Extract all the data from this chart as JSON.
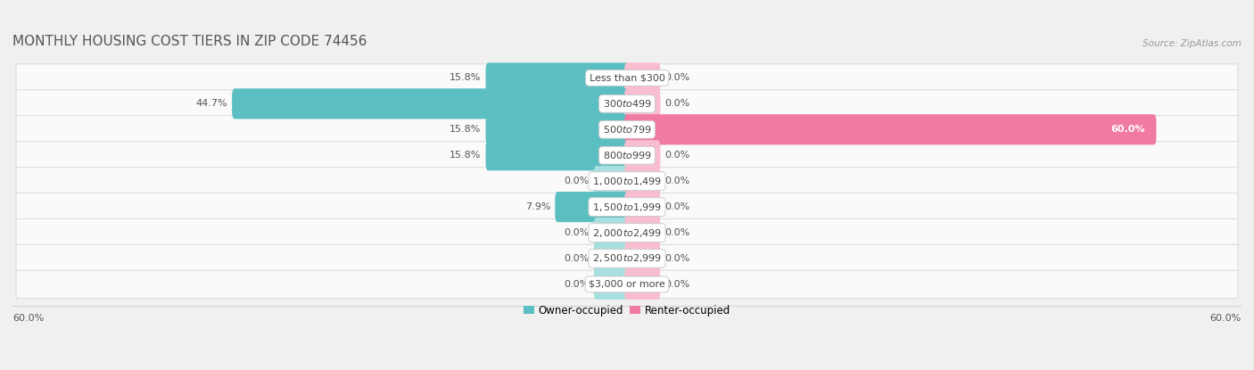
{
  "title": "MONTHLY HOUSING COST TIERS IN ZIP CODE 74456",
  "source": "Source: ZipAtlas.com",
  "categories": [
    "Less than $300",
    "$300 to $499",
    "$500 to $799",
    "$800 to $999",
    "$1,000 to $1,499",
    "$1,500 to $1,999",
    "$2,000 to $2,499",
    "$2,500 to $2,999",
    "$3,000 or more"
  ],
  "owner_values": [
    15.8,
    44.7,
    15.8,
    15.8,
    0.0,
    7.9,
    0.0,
    0.0,
    0.0
  ],
  "renter_values": [
    0.0,
    0.0,
    60.0,
    0.0,
    0.0,
    0.0,
    0.0,
    0.0,
    0.0
  ],
  "owner_color": "#5bbfc2",
  "renter_color": "#f07aa0",
  "owner_color_zero": "#a8dfe0",
  "renter_color_zero": "#f9bdd0",
  "bg_color": "#f0f0f0",
  "row_bg_color": "#fafafa",
  "row_border_color": "#dddddd",
  "max_val": 60.0,
  "zero_stub": 3.5,
  "title_fontsize": 11,
  "label_fontsize": 8,
  "category_fontsize": 8,
  "legend_fontsize": 8.5
}
